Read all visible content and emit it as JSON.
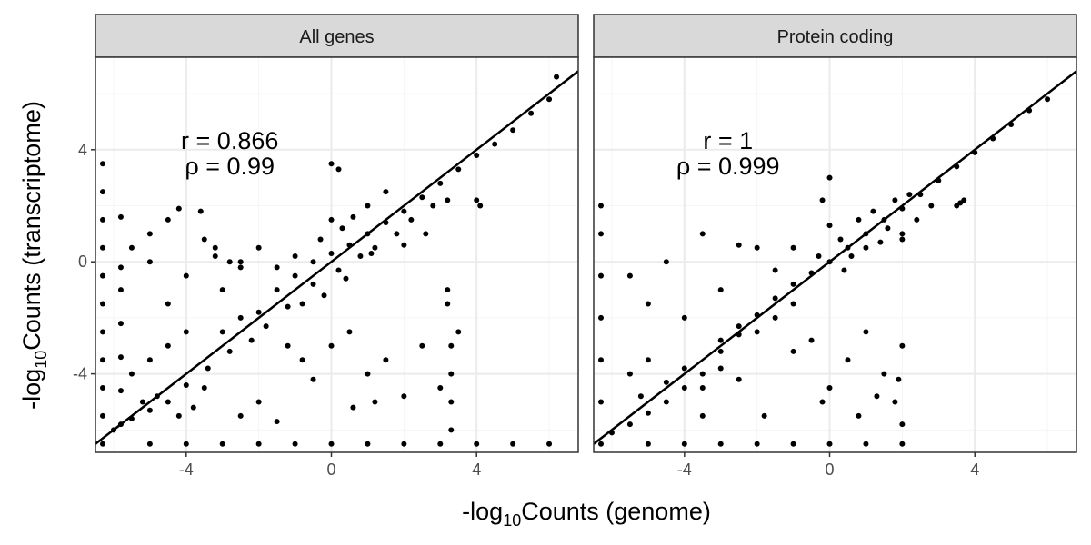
{
  "chart_data": {
    "type": "scatter",
    "xlabel": {
      "prefix": "-log",
      "sub": "10",
      "suffix": "Counts (genome)"
    },
    "ylabel": {
      "prefix": "-log",
      "sub": "10",
      "suffix": "Counts (transcriptome)"
    },
    "xlim": [
      -6.5,
      6.8
    ],
    "ylim": [
      -6.8,
      7.3
    ],
    "x_ticks": [
      -4,
      0,
      4
    ],
    "y_ticks": [
      -4,
      0,
      4
    ],
    "x_tick_labels": [
      "-4",
      "0",
      "4"
    ],
    "y_tick_labels": [
      "-4",
      "0",
      "4"
    ],
    "grid": true,
    "reference_line": {
      "slope": 1,
      "intercept": 0
    },
    "colors": {
      "points": "#000000",
      "strip": "#d9d9d9",
      "grid_major": "#ebebeb",
      "grid_minor": "#f5f5f5",
      "frame": "#333333"
    },
    "facets": [
      {
        "title": "All genes",
        "annotation": [
          "r = 0.866",
          "ρ = 0.99"
        ],
        "points": [
          [
            -3.0,
            -2.5
          ],
          [
            -2.5,
            -2.0
          ],
          [
            -2.0,
            -1.8
          ],
          [
            -1.5,
            -1.0
          ],
          [
            -1.0,
            -0.5
          ],
          [
            -0.5,
            0.0
          ],
          [
            0.0,
            0.3
          ],
          [
            0.5,
            0.6
          ],
          [
            1.0,
            1.0
          ],
          [
            1.5,
            1.4
          ],
          [
            2.0,
            1.8
          ],
          [
            2.5,
            2.3
          ],
          [
            3.0,
            2.8
          ],
          [
            3.5,
            3.3
          ],
          [
            4.0,
            3.8
          ],
          [
            4.5,
            4.2
          ],
          [
            5.0,
            4.7
          ],
          [
            5.5,
            5.3
          ],
          [
            6.0,
            5.8
          ],
          [
            6.2,
            6.6
          ],
          [
            -0.5,
            -0.8
          ],
          [
            0.2,
            -0.3
          ],
          [
            0.8,
            0.2
          ],
          [
            1.2,
            0.5
          ],
          [
            1.8,
            1.0
          ],
          [
            2.2,
            1.5
          ],
          [
            2.8,
            2.0
          ],
          [
            0.3,
            1.2
          ],
          [
            1.0,
            2.0
          ],
          [
            1.5,
            2.5
          ],
          [
            0.6,
            1.6
          ],
          [
            1.1,
            0.3
          ],
          [
            2.0,
            0.6
          ],
          [
            2.6,
            1.0
          ],
          [
            3.2,
            2.2
          ],
          [
            0.4,
            -0.6
          ],
          [
            -0.2,
            -1.2
          ],
          [
            -0.8,
            -1.5
          ],
          [
            0.0,
            1.5
          ],
          [
            -0.3,
            0.8
          ],
          [
            -1.2,
            -1.6
          ],
          [
            -1.8,
            -2.3
          ],
          [
            -2.2,
            -2.8
          ],
          [
            -2.8,
            -3.2
          ],
          [
            -3.4,
            -3.8
          ],
          [
            -4.0,
            -4.4
          ],
          [
            -4.5,
            -5.0
          ],
          [
            -5.0,
            -5.3
          ],
          [
            -5.5,
            -5.6
          ],
          [
            -6.0,
            -6.0
          ],
          [
            -2.0,
            0.5
          ],
          [
            -2.5,
            -0.2
          ],
          [
            -3.0,
            -1.0
          ],
          [
            -3.5,
            0.8
          ],
          [
            -4.0,
            -0.5
          ],
          [
            -4.5,
            -1.5
          ],
          [
            -5.0,
            0.0
          ],
          [
            -5.5,
            0.5
          ],
          [
            -3.2,
            0.2
          ],
          [
            -2.8,
            0.0
          ],
          [
            -1.5,
            -0.2
          ],
          [
            -1.0,
            0.2
          ],
          [
            -1.2,
            -3.0
          ],
          [
            -0.8,
            -3.5
          ],
          [
            -0.5,
            -4.2
          ],
          [
            0.0,
            -3.0
          ],
          [
            0.5,
            -2.5
          ],
          [
            1.0,
            -4.0
          ],
          [
            1.5,
            -3.5
          ],
          [
            2.0,
            -4.8
          ],
          [
            2.5,
            -3.0
          ],
          [
            3.0,
            -4.5
          ],
          [
            1.2,
            -5.0
          ],
          [
            0.6,
            -5.2
          ],
          [
            -4.0,
            -2.5
          ],
          [
            -4.5,
            -3.0
          ],
          [
            -5.0,
            -3.5
          ],
          [
            -5.5,
            -4.0
          ],
          [
            -3.5,
            -4.5
          ],
          [
            -4.8,
            -4.8
          ],
          [
            -5.2,
            -5.0
          ],
          [
            -4.2,
            -5.5
          ],
          [
            -3.8,
            -5.2
          ],
          [
            -2.5,
            -5.5
          ],
          [
            -2.0,
            -5.0
          ],
          [
            -1.5,
            -5.7
          ],
          [
            -6.3,
            -6.5
          ],
          [
            -5.0,
            -6.5
          ],
          [
            -4.0,
            -6.5
          ],
          [
            -3.0,
            -6.5
          ],
          [
            -2.0,
            -6.5
          ],
          [
            -1.0,
            -6.5
          ],
          [
            0.0,
            -6.5
          ],
          [
            1.0,
            -6.5
          ],
          [
            2.0,
            -6.5
          ],
          [
            3.0,
            -6.5
          ],
          [
            4.0,
            -6.5
          ],
          [
            5.0,
            -6.5
          ],
          [
            6.0,
            -6.5
          ],
          [
            -6.3,
            -5.5
          ],
          [
            -6.3,
            -4.5
          ],
          [
            -6.3,
            -3.5
          ],
          [
            -6.3,
            -2.5
          ],
          [
            -6.3,
            -1.5
          ],
          [
            -6.3,
            -0.5
          ],
          [
            -6.3,
            0.5
          ],
          [
            -6.3,
            1.5
          ],
          [
            -6.3,
            2.5
          ],
          [
            -6.3,
            3.5
          ],
          [
            -5.8,
            -5.8
          ],
          [
            -5.8,
            -4.6
          ],
          [
            -5.8,
            -3.4
          ],
          [
            -5.8,
            -2.2
          ],
          [
            -5.8,
            -1.0
          ],
          [
            -5.8,
            -0.2
          ],
          [
            -5.8,
            1.6
          ],
          [
            3.3,
            -3.0
          ],
          [
            3.3,
            -4.0
          ],
          [
            3.3,
            -5.0
          ],
          [
            3.3,
            -6.0
          ],
          [
            3.2,
            -1.0
          ],
          [
            3.2,
            -1.5
          ],
          [
            3.5,
            -2.5
          ],
          [
            0.0,
            3.5
          ],
          [
            0.2,
            3.3
          ],
          [
            4.0,
            2.2
          ],
          [
            4.1,
            2.0
          ],
          [
            -2.5,
            0.0
          ],
          [
            -3.2,
            0.5
          ],
          [
            -3.6,
            1.8
          ],
          [
            -4.2,
            1.9
          ],
          [
            -5.0,
            1.0
          ],
          [
            -4.5,
            1.5
          ]
        ]
      },
      {
        "title": "Protein coding",
        "annotation": [
          "r = 1",
          "ρ = 0.999"
        ],
        "points": [
          [
            -3.0,
            -2.8
          ],
          [
            -2.5,
            -2.3
          ],
          [
            -2.0,
            -1.9
          ],
          [
            -1.5,
            -1.3
          ],
          [
            -1.0,
            -0.8
          ],
          [
            -0.5,
            -0.4
          ],
          [
            0.0,
            0.0
          ],
          [
            0.5,
            0.5
          ],
          [
            1.0,
            1.0
          ],
          [
            1.5,
            1.5
          ],
          [
            2.0,
            1.9
          ],
          [
            2.5,
            2.4
          ],
          [
            3.0,
            2.9
          ],
          [
            3.5,
            3.4
          ],
          [
            4.0,
            3.9
          ],
          [
            4.5,
            4.4
          ],
          [
            5.0,
            4.9
          ],
          [
            5.5,
            5.4
          ],
          [
            6.0,
            5.8
          ],
          [
            0.3,
            0.8
          ],
          [
            0.8,
            1.5
          ],
          [
            1.2,
            1.8
          ],
          [
            1.6,
            1.2
          ],
          [
            2.0,
            1.0
          ],
          [
            2.4,
            1.5
          ],
          [
            0.6,
            0.2
          ],
          [
            1.0,
            0.5
          ],
          [
            1.8,
            2.2
          ],
          [
            2.2,
            2.4
          ],
          [
            0.0,
            1.3
          ],
          [
            -0.3,
            0.2
          ],
          [
            0.4,
            -0.3
          ],
          [
            1.4,
            0.7
          ],
          [
            2.0,
            0.8
          ],
          [
            2.8,
            2.0
          ],
          [
            0.0,
            3.0
          ],
          [
            -0.2,
            2.2
          ],
          [
            -1.0,
            -1.5
          ],
          [
            -1.5,
            -2.0
          ],
          [
            -2.0,
            -2.5
          ],
          [
            -2.5,
            -2.6
          ],
          [
            -3.0,
            -3.2
          ],
          [
            -3.5,
            -4.0
          ],
          [
            -4.0,
            -4.5
          ],
          [
            -4.5,
            -5.0
          ],
          [
            -5.0,
            -5.4
          ],
          [
            -5.5,
            -5.8
          ],
          [
            -6.0,
            -6.1
          ],
          [
            -3.0,
            -1.0
          ],
          [
            -4.0,
            -2.0
          ],
          [
            -5.0,
            -1.5
          ],
          [
            -4.5,
            0.0
          ],
          [
            -3.5,
            1.0
          ],
          [
            -2.0,
            0.5
          ],
          [
            -1.5,
            -0.3
          ],
          [
            -1.0,
            0.5
          ],
          [
            -5.5,
            -0.5
          ],
          [
            -2.5,
            0.6
          ],
          [
            -0.5,
            -2.8
          ],
          [
            0.5,
            -3.5
          ],
          [
            1.0,
            -2.5
          ],
          [
            1.5,
            -4.0
          ],
          [
            0.0,
            -4.5
          ],
          [
            -1.0,
            -3.2
          ],
          [
            2.0,
            -3.0
          ],
          [
            1.3,
            -4.8
          ],
          [
            -0.2,
            -5.0
          ],
          [
            0.8,
            -5.5
          ],
          [
            -5.0,
            -3.5
          ],
          [
            -5.5,
            -4.0
          ],
          [
            -4.5,
            -4.3
          ],
          [
            -4.0,
            -3.8
          ],
          [
            -3.5,
            -4.5
          ],
          [
            -5.2,
            -4.8
          ],
          [
            -2.5,
            -4.2
          ],
          [
            -3.0,
            -3.8
          ],
          [
            -1.8,
            -5.5
          ],
          [
            -3.5,
            -5.5
          ],
          [
            -6.3,
            -6.5
          ],
          [
            -5.0,
            -6.5
          ],
          [
            -4.0,
            -6.5
          ],
          [
            -3.0,
            -6.5
          ],
          [
            -2.0,
            -6.5
          ],
          [
            -1.0,
            -6.5
          ],
          [
            0.0,
            -6.5
          ],
          [
            1.0,
            -6.5
          ],
          [
            2.0,
            -6.5
          ],
          [
            -6.3,
            -5.0
          ],
          [
            -6.3,
            -3.5
          ],
          [
            -6.3,
            -2.0
          ],
          [
            -6.3,
            -0.5
          ],
          [
            -6.3,
            1.0
          ],
          [
            -6.3,
            2.0
          ],
          [
            3.5,
            2.0
          ],
          [
            3.6,
            2.1
          ],
          [
            3.7,
            2.2
          ],
          [
            1.8,
            -5.0
          ],
          [
            2.0,
            -5.8
          ],
          [
            1.9,
            -4.2
          ]
        ]
      }
    ]
  }
}
